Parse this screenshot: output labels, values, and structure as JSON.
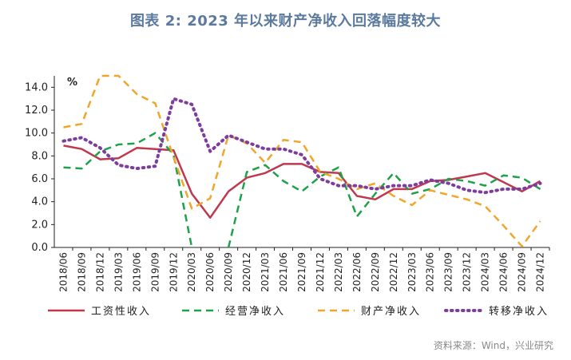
{
  "title": "图表 2:   2023 年以来财产净收入回落幅度较大",
  "source": "资料来源：Wind，兴业研究",
  "chart_data": {
    "type": "line",
    "ylabel": "%",
    "ylim": [
      0,
      15
    ],
    "yticks": [
      0.0,
      2.0,
      4.0,
      6.0,
      8.0,
      10.0,
      12.0,
      14.0
    ],
    "ytick_labels": [
      "0.0",
      "2.0",
      "4.0",
      "6.0",
      "8.0",
      "10.0",
      "12.0",
      "14.0"
    ],
    "categories": [
      "2018/06",
      "2018/09",
      "2018/12",
      "2019/03",
      "2019/06",
      "2019/09",
      "2019/12",
      "2020/03",
      "2020/06",
      "2020/09",
      "2020/12",
      "2021/03",
      "2021/06",
      "2021/09",
      "2021/12",
      "2022/03",
      "2022/06",
      "2022/09",
      "2022/12",
      "2023/03",
      "2023/06",
      "2023/09",
      "2023/12",
      "2024/03",
      "2024/06",
      "2024/09",
      "2024/12"
    ],
    "legend_position": "bottom",
    "series": [
      {
        "name": "工资性收入",
        "color": "#c0384e",
        "dash": "solid",
        "values": [
          8.9,
          8.6,
          7.7,
          7.8,
          8.7,
          8.6,
          8.5,
          4.7,
          2.6,
          4.9,
          6.1,
          6.5,
          7.3,
          7.3,
          6.6,
          6.5,
          4.5,
          4.2,
          5.1,
          5.1,
          5.8,
          5.9,
          6.2,
          6.5,
          5.7,
          4.9,
          5.8
        ]
      },
      {
        "name": "经营净收入",
        "color": "#1fa14a",
        "dash": "dashed",
        "values": [
          7.0,
          6.9,
          8.4,
          9.0,
          9.1,
          10.0,
          8.1,
          0.0,
          null,
          0.0,
          6.6,
          7.2,
          5.8,
          4.9,
          6.2,
          7.0,
          2.7,
          4.7,
          6.5,
          4.7,
          5.1,
          6.0,
          5.8,
          5.4,
          6.3,
          6.1,
          5.1
        ]
      },
      {
        "name": "财产净收入",
        "color": "#f0a62a",
        "dash": "dashed",
        "values": [
          10.5,
          10.8,
          15.0,
          15.0,
          13.4,
          12.6,
          7.9,
          3.4,
          4.3,
          9.8,
          9.1,
          7.4,
          9.4,
          9.2,
          6.6,
          6.0,
          5.1,
          5.6,
          4.5,
          3.7,
          5.0,
          4.6,
          4.2,
          3.6,
          1.9,
          0.1,
          2.3
        ]
      },
      {
        "name": "转移净收入",
        "color": "#7d3d9e",
        "dash": "dotted",
        "values": [
          9.3,
          9.6,
          8.7,
          7.2,
          6.9,
          7.1,
          13.0,
          12.5,
          8.4,
          9.8,
          9.2,
          8.6,
          8.6,
          8.1,
          6.0,
          5.4,
          5.4,
          5.1,
          5.4,
          5.4,
          5.9,
          5.6,
          5.0,
          4.8,
          5.1,
          5.1,
          5.6
        ]
      }
    ]
  }
}
